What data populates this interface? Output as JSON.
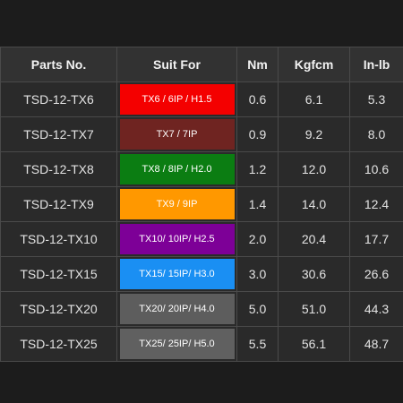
{
  "table": {
    "headers": [
      "Parts No.",
      "Suit For",
      "Nm",
      "Kgfcm",
      "In-lb"
    ],
    "rows": [
      {
        "part": "TSD-12-TX6",
        "suit": "TX6 / 6IP / H1.5",
        "suit_color": "#f40000",
        "suit_text_color": "#ffffff",
        "nm": "0.6",
        "kgfcm": "6.1",
        "inlb": "5.3"
      },
      {
        "part": "TSD-12-TX7",
        "suit": "TX7 / 7IP",
        "suit_color": "#6f2421",
        "suit_text_color": "#ffffff",
        "nm": "0.9",
        "kgfcm": "9.2",
        "inlb": "8.0"
      },
      {
        "part": "TSD-12-TX8",
        "suit": "TX8 / 8IP / H2.0",
        "suit_color": "#0b7d12",
        "suit_text_color": "#ffffff",
        "nm": "1.2",
        "kgfcm": "12.0",
        "inlb": "10.6"
      },
      {
        "part": "TSD-12-TX9",
        "suit": "TX9 / 9IP",
        "suit_color": "#ff9800",
        "suit_text_color": "#ffffff",
        "nm": "1.4",
        "kgfcm": "14.0",
        "inlb": "12.4"
      },
      {
        "part": "TSD-12-TX10",
        "suit": "TX10/ 10IP/ H2.5",
        "suit_color": "#7d0097",
        "suit_text_color": "#ffffff",
        "nm": "2.0",
        "kgfcm": "20.4",
        "inlb": "17.7"
      },
      {
        "part": "TSD-12-TX15",
        "suit": "TX15/ 15IP/ H3.0",
        "suit_color": "#1a8ff3",
        "suit_text_color": "#ffffff",
        "nm": "3.0",
        "kgfcm": "30.6",
        "inlb": "26.6"
      },
      {
        "part": "TSD-12-TX20",
        "suit": "TX20/ 20IP/ H4.0",
        "suit_color": "#5d5d5d",
        "suit_text_color": "#ffffff",
        "nm": "5.0",
        "kgfcm": "51.0",
        "inlb": "44.3"
      },
      {
        "part": "TSD-12-TX25",
        "suit": "TX25/ 25IP/ H5.0",
        "suit_color": "#606060",
        "suit_text_color": "#ffffff",
        "nm": "5.5",
        "kgfcm": "56.1",
        "inlb": "48.7"
      }
    ]
  }
}
